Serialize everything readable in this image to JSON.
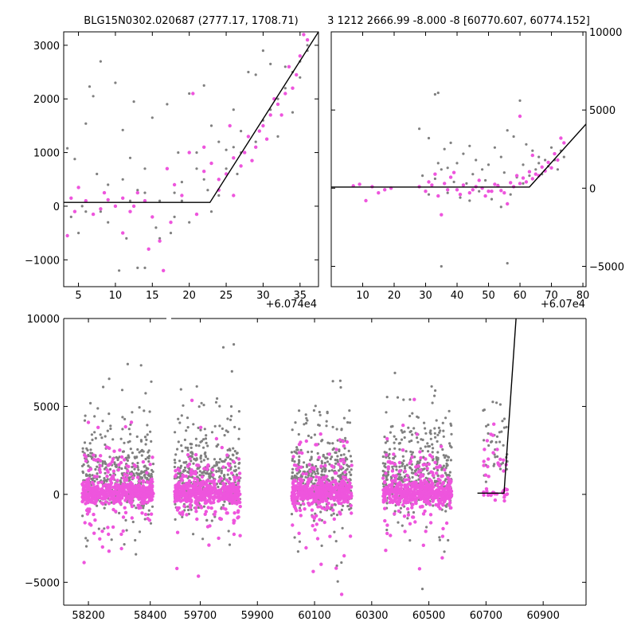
{
  "colors": {
    "gray": "#808080",
    "magenta": "#ee55dd",
    "model": "#000000"
  },
  "chart_data": [
    {
      "type": "scatter",
      "name": "top-left-zoom",
      "title": "BLG15N0302.020687 (2777.17, 1708.71)",
      "x_offset_label": "+6.074e4",
      "xlim": [
        3,
        37.5
      ],
      "ylim": [
        -1500,
        3250
      ],
      "xticks": [
        5,
        10,
        15,
        20,
        25,
        30,
        35
      ],
      "xtick_labels": [
        "5",
        "10",
        "15",
        "20",
        "25",
        "30",
        "35"
      ],
      "yticks": [
        -1000,
        0,
        1000,
        2000,
        3000
      ],
      "ytick_labels": [
        "−1000",
        "0",
        "1000",
        "2000",
        "3000"
      ],
      "model": [
        [
          3,
          70
        ],
        [
          22.8,
          70
        ],
        [
          37.5,
          3250
        ]
      ],
      "gray_points": [
        [
          3.5,
          1080
        ],
        [
          4.5,
          880
        ],
        [
          6,
          1540
        ],
        [
          6.5,
          2230
        ],
        [
          7,
          2050
        ],
        [
          8,
          2700
        ],
        [
          10,
          2300
        ],
        [
          11,
          1420
        ],
        [
          12.5,
          1950
        ],
        [
          14,
          700
        ],
        [
          15,
          1650
        ],
        [
          17,
          1900
        ],
        [
          18.5,
          1000
        ],
        [
          20,
          2100
        ],
        [
          21,
          1000
        ],
        [
          22,
          2250
        ],
        [
          23,
          1500
        ],
        [
          24,
          1200
        ],
        [
          25,
          1050
        ],
        [
          26,
          1800
        ],
        [
          27,
          1000
        ],
        [
          28,
          2500
        ],
        [
          29,
          2450
        ],
        [
          30,
          2900
        ],
        [
          31,
          2650
        ],
        [
          32,
          1300
        ],
        [
          33,
          2600
        ],
        [
          34,
          1750
        ],
        [
          35,
          2400
        ],
        [
          36,
          2900
        ],
        [
          10.5,
          -1200
        ],
        [
          13,
          -1150
        ],
        [
          14,
          -1150
        ],
        [
          15.5,
          -400
        ],
        [
          16,
          -600
        ],
        [
          17.5,
          -500
        ],
        [
          20,
          -300
        ],
        [
          4,
          -200
        ],
        [
          5,
          -500
        ],
        [
          6,
          -100
        ],
        [
          8,
          -100
        ],
        [
          9,
          400
        ],
        [
          11,
          500
        ],
        [
          12,
          100
        ],
        [
          13,
          300
        ],
        [
          16,
          100
        ],
        [
          18,
          250
        ],
        [
          19,
          450
        ],
        [
          21,
          700
        ],
        [
          22,
          500
        ],
        [
          23,
          -100
        ],
        [
          24,
          200
        ],
        [
          25,
          700
        ],
        [
          26,
          1100
        ],
        [
          27,
          1400
        ],
        [
          28,
          1300
        ],
        [
          29,
          1200
        ],
        [
          30,
          1600
        ],
        [
          31,
          1800
        ],
        [
          32,
          2000
        ],
        [
          33,
          2200
        ],
        [
          34,
          2500
        ],
        [
          35,
          2700
        ],
        [
          36,
          3000
        ],
        [
          7.5,
          600
        ],
        [
          12,
          900
        ],
        [
          14,
          250
        ],
        [
          18,
          -200
        ],
        [
          22.5,
          300
        ],
        [
          26.5,
          600
        ],
        [
          11.5,
          -600
        ],
        [
          9,
          -300
        ],
        [
          5.5,
          0
        ],
        [
          19,
          100
        ]
      ],
      "magenta_points": [
        [
          3.5,
          -550
        ],
        [
          4,
          150
        ],
        [
          4.5,
          -100
        ],
        [
          5,
          350
        ],
        [
          6,
          100
        ],
        [
          7,
          -150
        ],
        [
          8,
          -50
        ],
        [
          9,
          120
        ],
        [
          10,
          0
        ],
        [
          11,
          150
        ],
        [
          12,
          -100
        ],
        [
          13,
          250
        ],
        [
          14,
          100
        ],
        [
          15,
          -200
        ],
        [
          16,
          -650
        ],
        [
          17,
          700
        ],
        [
          18,
          400
        ],
        [
          19,
          200
        ],
        [
          20,
          1000
        ],
        [
          21,
          -150
        ],
        [
          22,
          1100
        ],
        [
          23,
          800
        ],
        [
          24,
          300
        ],
        [
          25,
          600
        ],
        [
          26,
          900
        ],
        [
          27,
          750
        ],
        [
          28,
          1300
        ],
        [
          29,
          1100
        ],
        [
          30,
          1500
        ],
        [
          31,
          1700
        ],
        [
          32,
          1900
        ],
        [
          33,
          2100
        ],
        [
          34,
          2200
        ],
        [
          35,
          2800
        ],
        [
          36,
          3100
        ],
        [
          11,
          -500
        ],
        [
          14.5,
          -800
        ],
        [
          16.5,
          -1200
        ],
        [
          20.5,
          2100
        ],
        [
          24,
          500
        ],
        [
          25.5,
          1500
        ],
        [
          27.5,
          1000
        ],
        [
          29.5,
          1400
        ],
        [
          31.5,
          2000
        ],
        [
          33.5,
          2600
        ],
        [
          35.5,
          3200
        ],
        [
          8.5,
          250
        ],
        [
          12.5,
          0
        ],
        [
          17.5,
          -300
        ],
        [
          22,
          650
        ],
        [
          26,
          200
        ],
        [
          28.5,
          850
        ],
        [
          30.5,
          1250
        ],
        [
          32.5,
          1700
        ],
        [
          34.5,
          2450
        ]
      ]
    },
    {
      "type": "scatter",
      "name": "top-right-zoom",
      "title": "3 1212 2666.99 -8.000 -8 [60770.607, 60774.152]",
      "x_offset_label": "+6.07e4",
      "xlim": [
        0,
        81
      ],
      "ylim": [
        -6300,
        10000
      ],
      "xticks": [
        10,
        20,
        30,
        40,
        50,
        60,
        70,
        80
      ],
      "xtick_labels": [
        "10",
        "20",
        "30",
        "40",
        "50",
        "60",
        "70",
        "80"
      ],
      "yticks": [
        -5000,
        0,
        5000,
        10000
      ],
      "ytick_labels": [
        "−5000",
        "0",
        "5000",
        "10000"
      ],
      "model": [
        [
          0,
          70
        ],
        [
          63,
          70
        ],
        [
          81,
          4100
        ]
      ],
      "gray_points": [
        [
          28,
          3800
        ],
        [
          31,
          3200
        ],
        [
          33,
          6000
        ],
        [
          34,
          6100
        ],
        [
          35,
          1200
        ],
        [
          36,
          2500
        ],
        [
          37,
          1300
        ],
        [
          38,
          2900
        ],
        [
          40,
          1600
        ],
        [
          42,
          2200
        ],
        [
          44,
          2700
        ],
        [
          46,
          1800
        ],
        [
          48,
          1200
        ],
        [
          50,
          1500
        ],
        [
          52,
          2600
        ],
        [
          54,
          2000
        ],
        [
          56,
          3700
        ],
        [
          58,
          3300
        ],
        [
          60,
          5600
        ],
        [
          62,
          2800
        ],
        [
          64,
          2400
        ],
        [
          66,
          2000
        ],
        [
          68,
          1800
        ],
        [
          70,
          2600
        ],
        [
          72,
          1200
        ],
        [
          74,
          2000
        ],
        [
          35,
          -5000
        ],
        [
          56,
          -4800
        ],
        [
          29,
          800
        ],
        [
          31,
          -400
        ],
        [
          33,
          600
        ],
        [
          37,
          -300
        ],
        [
          39,
          400
        ],
        [
          41,
          -600
        ],
        [
          43,
          300
        ],
        [
          45,
          900
        ],
        [
          47,
          -200
        ],
        [
          49,
          500
        ],
        [
          51,
          -700
        ],
        [
          53,
          200
        ],
        [
          55,
          1000
        ],
        [
          57,
          -400
        ],
        [
          59,
          700
        ],
        [
          61,
          300
        ],
        [
          63,
          800
        ],
        [
          65,
          1200
        ],
        [
          67,
          900
        ],
        [
          69,
          1400
        ],
        [
          71,
          1800
        ],
        [
          73,
          2400
        ],
        [
          34,
          1600
        ],
        [
          44,
          -800
        ],
        [
          54,
          -1200
        ],
        [
          61,
          1500
        ],
        [
          66,
          1600
        ]
      ],
      "magenta_points": [
        [
          7,
          150
        ],
        [
          9,
          250
        ],
        [
          11,
          -800
        ],
        [
          13,
          100
        ],
        [
          15,
          -300
        ],
        [
          17,
          -100
        ],
        [
          19,
          0
        ],
        [
          28,
          100
        ],
        [
          30,
          -200
        ],
        [
          32,
          200
        ],
        [
          34,
          -500
        ],
        [
          35,
          -1700
        ],
        [
          36,
          300
        ],
        [
          38,
          700
        ],
        [
          40,
          -100
        ],
        [
          42,
          200
        ],
        [
          44,
          -300
        ],
        [
          46,
          100
        ],
        [
          48,
          0
        ],
        [
          50,
          -200
        ],
        [
          52,
          250
        ],
        [
          54,
          -150
        ],
        [
          56,
          -1000
        ],
        [
          58,
          100
        ],
        [
          60,
          300
        ],
        [
          62,
          400
        ],
        [
          64,
          600
        ],
        [
          66,
          800
        ],
        [
          68,
          1100
        ],
        [
          70,
          1300
        ],
        [
          72,
          1800
        ],
        [
          74,
          2900
        ],
        [
          33,
          900
        ],
        [
          39,
          1000
        ],
        [
          47,
          500
        ],
        [
          60,
          4600
        ],
        [
          64,
          2100
        ],
        [
          71,
          2200
        ],
        [
          73,
          3200
        ],
        [
          41,
          -400
        ],
        [
          49,
          -500
        ],
        [
          53,
          150
        ],
        [
          57,
          350
        ],
        [
          61,
          650
        ],
        [
          63,
          1050
        ],
        [
          65,
          900
        ],
        [
          67,
          1350
        ],
        [
          69,
          1650
        ],
        [
          31,
          400
        ],
        [
          37,
          -100
        ],
        [
          45,
          -100
        ],
        [
          51,
          -200
        ],
        [
          55,
          -300
        ],
        [
          59,
          800
        ]
      ]
    },
    {
      "type": "scatter",
      "name": "bottom-full-season",
      "xlim": [
        58120,
        61050
      ],
      "xbreak": 58460,
      "ylim": [
        -6300,
        10000
      ],
      "xticks": [
        58200,
        58400,
        59700,
        59900,
        60100,
        60300,
        60500,
        60700,
        60900
      ],
      "xtick_labels": [
        "58200",
        "58400",
        "59700",
        "59900",
        "60100",
        "60300",
        "60500",
        "60700",
        "60900"
      ],
      "yticks": [
        -5000,
        0,
        5000,
        10000
      ],
      "ytick_labels": [
        "−5000",
        "0",
        "5000",
        "10000"
      ],
      "model": [
        [
          60670,
          70
        ],
        [
          60763,
          70
        ],
        [
          60805,
          10000
        ]
      ],
      "seasons": [
        {
          "x0": 58180,
          "x1": 58410
        },
        {
          "x0": 59610,
          "x1": 59840
        },
        {
          "x0": 60020,
          "x1": 60230
        },
        {
          "x0": 60340,
          "x1": 60580
        }
      ],
      "season_tail": {
        "x0": 60690,
        "x1": 60775
      }
    }
  ]
}
